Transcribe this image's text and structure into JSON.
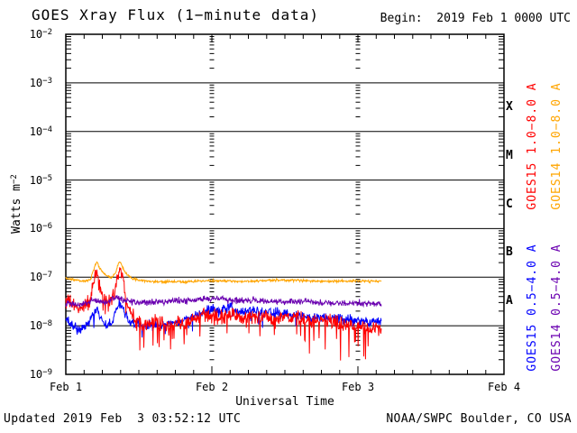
{
  "header": {
    "title": "GOES Xray Flux (1−minute data)",
    "begin": "Begin:  2019 Feb 1 0000 UTC"
  },
  "footer": {
    "updated": "Updated 2019 Feb  3 03:52:12 UTC",
    "source": "NOAA/SWPC Boulder, CO USA"
  },
  "colors": {
    "axis": "#000000",
    "background": "#ffffff"
  },
  "chart_data": {
    "type": "line",
    "title": "GOES Xray Flux (1−minute data)",
    "xlabel": "Universal Time",
    "ylabel_base": "Watts m",
    "ylabel_exp": "−2",
    "x_ticks": [
      "Feb 1",
      "Feb 2",
      "Feb 3",
      "Feb 4"
    ],
    "x_range_days": 3,
    "x_minor_tick_hours": 3,
    "y_tick_exponents": [
      -2,
      -3,
      -4,
      -5,
      -6,
      -7,
      -8,
      -9
    ],
    "ylim": [
      1e-09,
      0.01
    ],
    "grid": {
      "horizontal_decades": [
        -3,
        -4,
        -5,
        -6,
        -7,
        -8
      ],
      "vertical_day_lines": [
        1,
        2
      ]
    },
    "flux_classes": [
      {
        "letter": "X",
        "mid_exponent": -3.5
      },
      {
        "letter": "M",
        "mid_exponent": -4.5
      },
      {
        "letter": "C",
        "mid_exponent": -5.5
      },
      {
        "letter": "B",
        "mid_exponent": -6.5
      },
      {
        "letter": "A",
        "mid_exponent": -7.5
      }
    ],
    "series": [
      {
        "name": "GOES15 1.0−8.0 A",
        "color": "#ff0000",
        "noise": {
          "sigma": 0.075,
          "spike_prob": 0.06,
          "spike_min": 0.1,
          "spike_max": 0.5,
          "late_t": 1.55,
          "late_prob": 0.12,
          "late_max": 0.75
        },
        "keypoints": [
          [
            0,
            3.5e-08
          ],
          [
            0.04,
            2.8e-08
          ],
          [
            0.08,
            2.2e-08
          ],
          [
            0.13,
            2.8e-08
          ],
          [
            0.17,
            3.2e-08
          ],
          [
            0.195,
            9e-08
          ],
          [
            0.213,
            1.3e-07
          ],
          [
            0.228,
            8e-08
          ],
          [
            0.25,
            4e-08
          ],
          [
            0.29,
            2.8e-08
          ],
          [
            0.33,
            5e-08
          ],
          [
            0.355,
            1.05e-07
          ],
          [
            0.372,
            1.6e-07
          ],
          [
            0.39,
            9e-08
          ],
          [
            0.41,
            4.5e-08
          ],
          [
            0.44,
            2.2e-08
          ],
          [
            0.48,
            1.4e-08
          ],
          [
            0.54,
            1.1e-08
          ],
          [
            0.62,
            1.2e-08
          ],
          [
            0.7,
            9.5e-09
          ],
          [
            0.78,
            1.15e-08
          ],
          [
            0.88,
            1.3e-08
          ],
          [
            0.97,
            1.6e-08
          ],
          [
            1.05,
            1.5e-08
          ],
          [
            1.13,
            1.7e-08
          ],
          [
            1.22,
            1.4e-08
          ],
          [
            1.32,
            1.6e-08
          ],
          [
            1.42,
            1.4e-08
          ],
          [
            1.52,
            1.5e-08
          ],
          [
            1.62,
            1.3e-08
          ],
          [
            1.72,
            1.35e-08
          ],
          [
            1.82,
            1.2e-08
          ],
          [
            1.92,
            1.1e-08
          ],
          [
            2.0,
            1e-08
          ],
          [
            2.08,
            9e-09
          ],
          [
            2.16,
            8.5e-09
          ]
        ]
      },
      {
        "name": "GOES14 1.0−8.0 A",
        "color": "#ffa500",
        "noise": {
          "sigma": 0.013
        },
        "keypoints": [
          [
            0,
            9.5e-08
          ],
          [
            0.06,
            8.8e-08
          ],
          [
            0.12,
            8.2e-08
          ],
          [
            0.17,
            9e-08
          ],
          [
            0.195,
            1.6e-07
          ],
          [
            0.212,
            2.1e-07
          ],
          [
            0.23,
            1.55e-07
          ],
          [
            0.27,
            1.1e-07
          ],
          [
            0.31,
            9.5e-08
          ],
          [
            0.34,
            1.2e-07
          ],
          [
            0.365,
            2.2e-07
          ],
          [
            0.385,
            1.7e-07
          ],
          [
            0.41,
            1.2e-07
          ],
          [
            0.45,
            9.5e-08
          ],
          [
            0.52,
            8.5e-08
          ],
          [
            0.62,
            8e-08
          ],
          [
            0.8,
            8e-08
          ],
          [
            1.0,
            8.5e-08
          ],
          [
            1.25,
            8.2e-08
          ],
          [
            1.5,
            8.8e-08
          ],
          [
            1.75,
            8.2e-08
          ],
          [
            2.0,
            8.3e-08
          ],
          [
            2.16,
            8.2e-08
          ]
        ]
      },
      {
        "name": "GOES15 0.5−4.0 A",
        "color": "#0000ff",
        "noise": {
          "sigma": 0.05,
          "spike_prob": 0.02,
          "spike_min": 0.08,
          "spike_max": 0.3
        },
        "keypoints": [
          [
            0,
            1.25e-08
          ],
          [
            0.05,
            1e-08
          ],
          [
            0.1,
            8e-09
          ],
          [
            0.15,
            1.05e-08
          ],
          [
            0.195,
            1.9e-08
          ],
          [
            0.215,
            2.4e-08
          ],
          [
            0.235,
            1.5e-08
          ],
          [
            0.27,
            1.05e-08
          ],
          [
            0.31,
            1.1e-08
          ],
          [
            0.35,
            2.4e-08
          ],
          [
            0.372,
            3e-08
          ],
          [
            0.4,
            1.9e-08
          ],
          [
            0.44,
            1.2e-08
          ],
          [
            0.52,
            1e-08
          ],
          [
            0.62,
            1.05e-08
          ],
          [
            0.72,
            1.1e-08
          ],
          [
            0.82,
            1.35e-08
          ],
          [
            0.92,
            1.8e-08
          ],
          [
            1.0,
            2.3e-08
          ],
          [
            1.06,
            1.9e-08
          ],
          [
            1.12,
            2.5e-08
          ],
          [
            1.18,
            1.9e-08
          ],
          [
            1.27,
            2.2e-08
          ],
          [
            1.35,
            1.8e-08
          ],
          [
            1.45,
            1.9e-08
          ],
          [
            1.55,
            1.6e-08
          ],
          [
            1.68,
            1.5e-08
          ],
          [
            1.8,
            1.45e-08
          ],
          [
            1.92,
            1.3e-08
          ],
          [
            2.04,
            1.25e-08
          ],
          [
            2.16,
            1.2e-08
          ]
        ]
      },
      {
        "name": "GOES14 0.5−4.0 A",
        "color": "#6a00b0",
        "noise": {
          "sigma": 0.032
        },
        "keypoints": [
          [
            0,
            2.9e-08
          ],
          [
            0.1,
            2.7e-08
          ],
          [
            0.2,
            3.4e-08
          ],
          [
            0.27,
            3e-08
          ],
          [
            0.35,
            3.9e-08
          ],
          [
            0.42,
            3.2e-08
          ],
          [
            0.52,
            3e-08
          ],
          [
            0.65,
            3.1e-08
          ],
          [
            0.8,
            3.3e-08
          ],
          [
            0.95,
            3.5e-08
          ],
          [
            1.05,
            3.7e-08
          ],
          [
            1.15,
            3.2e-08
          ],
          [
            1.3,
            3.3e-08
          ],
          [
            1.45,
            3.1e-08
          ],
          [
            1.6,
            3.2e-08
          ],
          [
            1.75,
            3e-08
          ],
          [
            1.9,
            2.9e-08
          ],
          [
            2.03,
            2.9e-08
          ],
          [
            2.16,
            2.8e-08
          ]
        ]
      }
    ]
  }
}
